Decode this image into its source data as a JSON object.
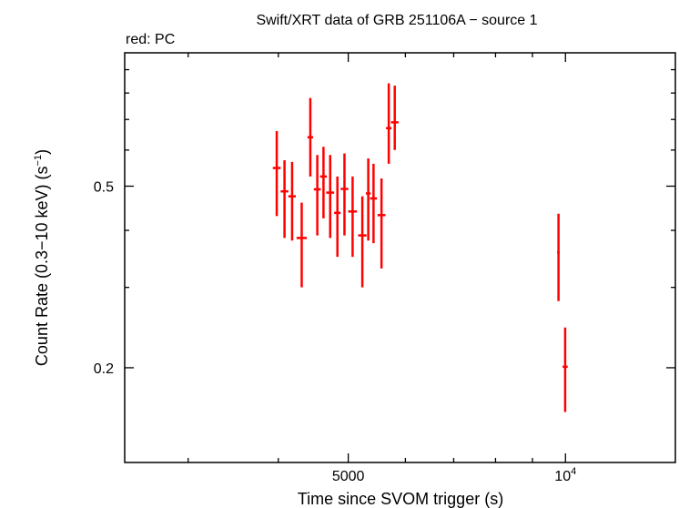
{
  "chart_data": {
    "type": "scatter",
    "title": "Swift/XRT data of GRB 251106A − source 1",
    "subtitle": "red: PC",
    "xlabel": "Time since SVOM trigger (s)",
    "ylabel_main": "Count Rate (0.3−10 keV) (s",
    "ylabel_sup": "−1",
    "ylabel_close": ")",
    "xscale": "log",
    "yscale": "log",
    "xlim": [
      2450,
      14200
    ],
    "ylim": [
      0.124,
      0.98
    ],
    "x_tick_labels": [
      {
        "value": 5000,
        "text": "5000"
      },
      {
        "value": 10000,
        "base": "10",
        "exp": "4"
      }
    ],
    "y_tick_labels": [
      {
        "value": 0.5,
        "text": "0.5"
      },
      {
        "value": 0.2,
        "text": "0.2"
      }
    ],
    "x_major_ticks": [
      5000,
      10000
    ],
    "x_minor_ticks": [
      3000,
      4000,
      6000,
      7000,
      8000,
      9000
    ],
    "y_major_ticks": [
      0.2,
      0.5
    ],
    "y_minor_ticks": [
      0.3,
      0.4,
      0.6,
      0.7,
      0.8,
      0.9
    ],
    "grid": false,
    "color": "#ff0000",
    "series": [
      {
        "points": [
          {
            "x": 3980,
            "xerr": 50,
            "y": 0.548,
            "ylo": 0.43,
            "yhi": 0.66
          },
          {
            "x": 4080,
            "xerr": 50,
            "y": 0.487,
            "ylo": 0.385,
            "yhi": 0.57
          },
          {
            "x": 4180,
            "xerr": 50,
            "y": 0.475,
            "ylo": 0.38,
            "yhi": 0.565
          },
          {
            "x": 4310,
            "xerr": 70,
            "y": 0.385,
            "ylo": 0.3,
            "yhi": 0.46
          },
          {
            "x": 4430,
            "xerr": 40,
            "y": 0.64,
            "ylo": 0.525,
            "yhi": 0.78
          },
          {
            "x": 4530,
            "xerr": 50,
            "y": 0.492,
            "ylo": 0.39,
            "yhi": 0.585
          },
          {
            "x": 4620,
            "xerr": 50,
            "y": 0.525,
            "ylo": 0.425,
            "yhi": 0.61
          },
          {
            "x": 4720,
            "xerr": 60,
            "y": 0.484,
            "ylo": 0.385,
            "yhi": 0.585
          },
          {
            "x": 4830,
            "xerr": 50,
            "y": 0.437,
            "ylo": 0.35,
            "yhi": 0.525
          },
          {
            "x": 4940,
            "xerr": 60,
            "y": 0.493,
            "ylo": 0.39,
            "yhi": 0.59
          },
          {
            "x": 5070,
            "xerr": 70,
            "y": 0.44,
            "ylo": 0.35,
            "yhi": 0.525
          },
          {
            "x": 5230,
            "xerr": 70,
            "y": 0.39,
            "ylo": 0.3,
            "yhi": 0.475
          },
          {
            "x": 5330,
            "xerr": 40,
            "y": 0.482,
            "ylo": 0.38,
            "yhi": 0.575
          },
          {
            "x": 5420,
            "xerr": 60,
            "y": 0.47,
            "ylo": 0.375,
            "yhi": 0.56
          },
          {
            "x": 5560,
            "xerr": 70,
            "y": 0.432,
            "ylo": 0.33,
            "yhi": 0.52
          },
          {
            "x": 5690,
            "xerr": 50,
            "y": 0.67,
            "ylo": 0.56,
            "yhi": 0.84
          },
          {
            "x": 5800,
            "xerr": 70,
            "y": 0.69,
            "ylo": 0.6,
            "yhi": 0.83
          },
          {
            "x": 9780,
            "xerr": 40,
            "y": 0.358,
            "ylo": 0.28,
            "yhi": 0.435
          },
          {
            "x": 9990,
            "xerr": 80,
            "y": 0.201,
            "ylo": 0.16,
            "yhi": 0.245
          }
        ]
      }
    ]
  }
}
